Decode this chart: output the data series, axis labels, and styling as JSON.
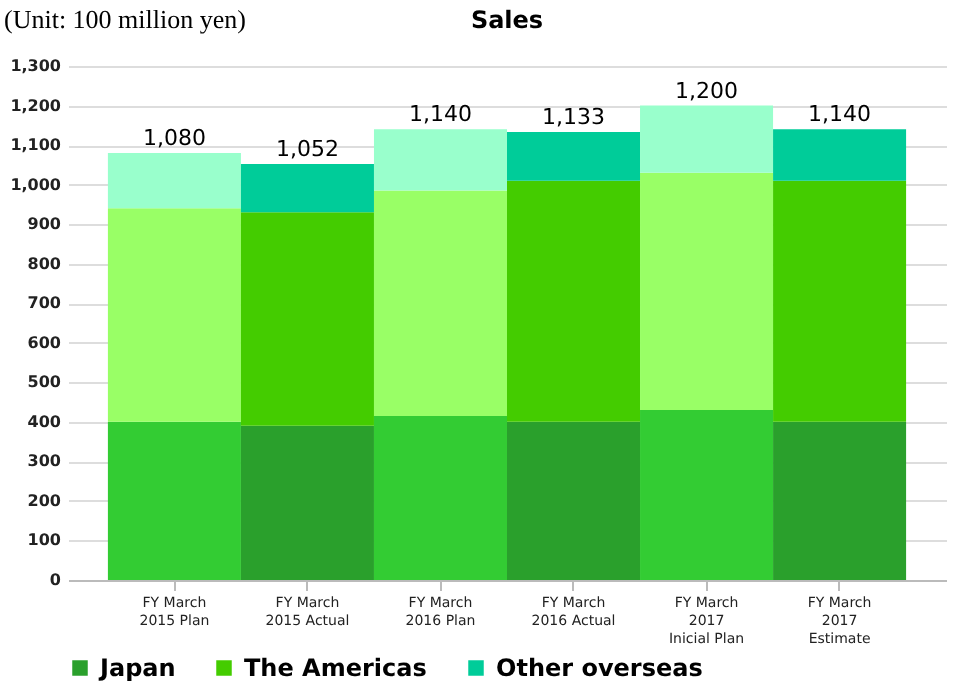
{
  "chart_data": {
    "type": "bar",
    "title": "Sales",
    "annotations": [
      "(Unit: 100 million yen)"
    ],
    "categories": [
      "FY March\n2015 Plan",
      "FY March\n2015 Actual",
      "FY March\n2016 Plan",
      "FY March\n2016 Actual",
      "FY March\n2017\nInicial Plan",
      "FY March\n2017\nEstimate"
    ],
    "stacked": true,
    "ylim": [
      0,
      1300
    ],
    "yticks": [
      0,
      {
        "value": 100,
        "label": "100"
      },
      200,
      300,
      400,
      500,
      600,
      700,
      800,
      900,
      {
        "value": 1000,
        "label": "1,000"
      },
      {
        "value": 1100,
        "label": "1,100"
      },
      {
        "value": 1200,
        "label": "1,200"
      },
      {
        "value": 1300,
        "label": "1,300"
      }
    ],
    "grid": "y",
    "legend": "bottom",
    "totals": [
      "1,080",
      "1,052",
      "1,140",
      "1,133",
      "1,200",
      "1,140"
    ],
    "series": [
      {
        "name": "Japan",
        "color": "#2aa02c",
        "colors": [
          "#33cc33",
          "#2aa02c",
          "#33cc33",
          "#2aa02c",
          "#33cc33",
          "#2aa02c"
        ],
        "values": [
          400,
          390,
          415,
          400,
          430,
          400
        ]
      },
      {
        "name": "The Americas",
        "color": "#44cc00",
        "colors": [
          "#99ff66",
          "#44cc00",
          "#99ff66",
          "#44cc00",
          "#99ff66",
          "#44cc00"
        ],
        "values": [
          540,
          540,
          570,
          610,
          600,
          610
        ]
      },
      {
        "name": "Other overseas",
        "color": "#00cc99",
        "colors": [
          "#99ffcc",
          "#00cc99",
          "#99ffcc",
          "#00cc99",
          "#99ffcc",
          "#00cc99"
        ],
        "values": [
          140,
          122,
          155,
          123,
          170,
          130
        ]
      }
    ]
  }
}
